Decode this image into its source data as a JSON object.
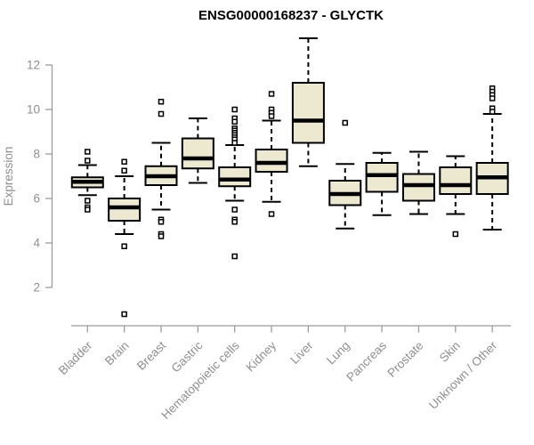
{
  "title": "ENSG00000168237 - GLYCTK",
  "colors": {
    "background": "#FFFFFF",
    "box_fill": "#EDE9D0",
    "box_stroke": "#000000",
    "outlier_fill": "#FFFFFF",
    "axis": "#9B9B9B",
    "tick_label": "#8E8E8E",
    "title": "#000000"
  },
  "chart_data": {
    "type": "boxplot",
    "title": "ENSG00000168237 - GLYCTK",
    "xlabel": "",
    "ylabel": "Expression",
    "yticks": [
      2,
      4,
      6,
      8,
      10,
      12
    ],
    "y_axis_range": [
      2,
      12
    ],
    "grid": "off",
    "legend": "none",
    "categories": [
      "Bladder",
      "Brain",
      "Breast",
      "Gastric",
      "Hematopoietic cells",
      "Kidney",
      "Liver",
      "Lung",
      "Pancreas",
      "Prostate",
      "Skin",
      "Unknown / Other"
    ],
    "boxes": [
      {
        "category": "Bladder",
        "whisker_low": 6.15,
        "q1": 6.5,
        "median": 6.75,
        "q3": 6.95,
        "whisker_high": 7.5,
        "outliers": [
          8.1,
          7.7,
          5.9,
          5.6,
          5.5
        ]
      },
      {
        "category": "Brain",
        "whisker_low": 4.4,
        "q1": 5.0,
        "median": 5.6,
        "q3": 6.0,
        "whisker_high": 7.0,
        "outliers": [
          7.65,
          7.25,
          3.85,
          0.8
        ]
      },
      {
        "category": "Breast",
        "whisker_low": 5.5,
        "q1": 6.6,
        "median": 7.0,
        "q3": 7.45,
        "whisker_high": 8.5,
        "outliers": [
          10.35,
          9.8,
          5.05,
          4.95,
          4.4,
          4.3
        ]
      },
      {
        "category": "Gastric",
        "whisker_low": 6.7,
        "q1": 7.35,
        "median": 7.8,
        "q3": 8.7,
        "whisker_high": 9.6,
        "outliers": []
      },
      {
        "category": "Hematopoietic cells",
        "whisker_low": 5.9,
        "q1": 6.55,
        "median": 6.85,
        "q3": 7.4,
        "whisker_high": 8.4,
        "outliers": [
          10.0,
          9.6,
          9.45,
          9.15,
          9.05,
          8.95,
          8.85,
          8.75,
          8.65,
          8.5,
          5.5,
          5.05,
          4.95,
          3.4
        ]
      },
      {
        "category": "Kidney",
        "whisker_low": 5.85,
        "q1": 7.2,
        "median": 7.6,
        "q3": 8.2,
        "whisker_high": 9.5,
        "outliers": [
          10.7,
          10.0,
          9.85,
          9.7,
          5.3
        ]
      },
      {
        "category": "Liver",
        "whisker_low": 7.45,
        "q1": 8.5,
        "median": 9.5,
        "q3": 11.2,
        "whisker_high": 13.2,
        "outliers": []
      },
      {
        "category": "Lung",
        "whisker_low": 4.65,
        "q1": 5.7,
        "median": 6.2,
        "q3": 6.8,
        "whisker_high": 7.55,
        "outliers": [
          9.4
        ]
      },
      {
        "category": "Pancreas",
        "whisker_low": 5.25,
        "q1": 6.3,
        "median": 7.05,
        "q3": 7.6,
        "whisker_high": 8.05,
        "outliers": []
      },
      {
        "category": "Prostate",
        "whisker_low": 5.3,
        "q1": 5.9,
        "median": 6.6,
        "q3": 7.1,
        "whisker_high": 8.1,
        "outliers": []
      },
      {
        "category": "Skin",
        "whisker_low": 5.3,
        "q1": 6.2,
        "median": 6.6,
        "q3": 7.4,
        "whisker_high": 7.9,
        "outliers": [
          4.4
        ]
      },
      {
        "category": "Unknown / Other",
        "whisker_low": 4.6,
        "q1": 6.2,
        "median": 6.95,
        "q3": 7.6,
        "whisker_high": 9.8,
        "outliers": [
          10.95,
          10.8,
          10.65,
          10.5,
          10.05,
          9.9
        ]
      }
    ]
  }
}
